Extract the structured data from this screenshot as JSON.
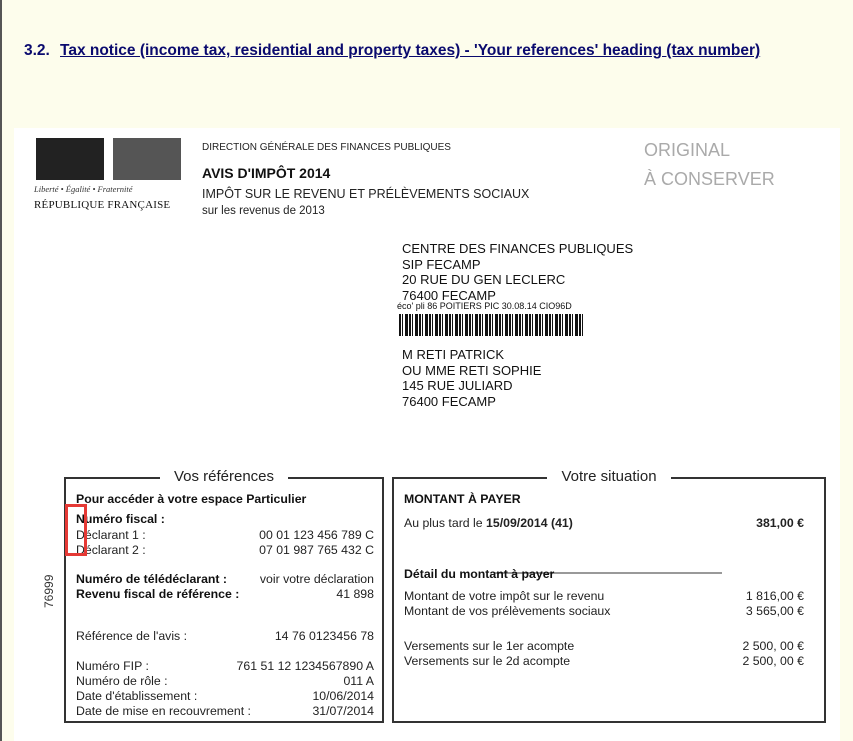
{
  "heading": {
    "number": "3.2.",
    "link": "Tax notice (income tax, residential and property taxes) - 'Your references' heading (tax number)"
  },
  "notice": {
    "logo_motto": "Liberté • Égalité • Fraternité",
    "logo_name": "RÉPUBLIQUE FRANÇAISE",
    "direction": "DIRECTION GÉNÉRALE DES FINANCES PUBLIQUES",
    "title": "AVIS D'IMPÔT 2014",
    "subtitle": "IMPÔT SUR LE REVENU ET PRÉLÈVEMENTS SOCIAUX",
    "revenus": "sur les revenus de 2013",
    "original": [
      "ORIGINAL",
      "À CONSERVER"
    ],
    "sender": [
      "CENTRE DES FINANCES PUBLIQUES",
      "SIP FECAMP",
      "20 RUE DU GEN LECLERC",
      "76400 FECAMP"
    ],
    "postal_code_line": "éco' pli 86 POITIERS PIC 30.08.14  CIO96D",
    "recipient": [
      "M RETI PATRICK",
      "OU MME RETI SOPHIE",
      "145 RUE JULIARD",
      "76400 FECAMP"
    ],
    "side_code": "76999"
  },
  "references": {
    "title": "Vos références",
    "access": "Pour accéder à votre espace Particulier",
    "numero_fiscal": "Numéro fiscal :",
    "rows": [
      {
        "label": "Déclarant 1 :",
        "value": "00 01 123 456 789 C"
      },
      {
        "label": "Déclarant 2 :",
        "value": "07 01 987 765 432 C"
      },
      {
        "label": "Numéro de télédéclarant :",
        "value": "voir votre déclaration"
      },
      {
        "label": "Revenu fiscal de référence :",
        "value": "41 898"
      },
      {
        "label": "Référence de l'avis :",
        "value": "14 76 0123456 78"
      },
      {
        "label": "Numéro FIP :",
        "value": "761 51 12 1234567890 A"
      },
      {
        "label": "Numéro de rôle :",
        "value": "011 A"
      },
      {
        "label": "Date d'établissement :",
        "value": "10/06/2014"
      },
      {
        "label": "Date de mise en recouvrement :",
        "value": "31/07/2014"
      }
    ]
  },
  "situation": {
    "title": "Votre situation",
    "montant": "MONTANT À PAYER",
    "au_plus_tard": "Au plus tard le ",
    "date": "15/09/2014 (41)",
    "amount": "381,00 €",
    "detail": "Détail du montant à payer",
    "rows": [
      {
        "label": "Montant de votre impôt sur le revenu",
        "value": "1 816,00 €"
      },
      {
        "label": "Montant de vos prélèvements sociaux",
        "value": "3 565,00 €"
      },
      {
        "label": "Versements sur le 1er acompte",
        "value": "2 500, 00 €"
      },
      {
        "label": "Versements sur le 2d acompte",
        "value": "2 500, 00 €"
      }
    ]
  },
  "highlight_color": "#e53935"
}
